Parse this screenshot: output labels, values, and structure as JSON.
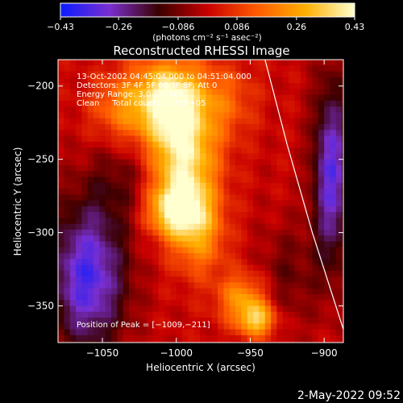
{
  "chart_data": {
    "type": "heatmap",
    "title": "Reconstructed RHESSI Image",
    "xlabel": "Heliocentric X (arcsec)",
    "ylabel": "Heliocentric Y (arcsec)",
    "xlim": [
      -1080,
      -887
    ],
    "ylim": [
      -375,
      -182
    ],
    "x_ticks": [
      -1050,
      -1000,
      -950,
      -900
    ],
    "x_tick_labels": [
      "−1050",
      "−1000",
      "−950",
      "−900"
    ],
    "y_ticks": [
      -200,
      -250,
      -300,
      -350
    ],
    "y_tick_labels": [
      "−200",
      "−250",
      "−300",
      "−350"
    ],
    "colorbar": {
      "min": -0.43,
      "max": 0.43,
      "ticks": [
        -0.43,
        -0.26,
        -0.086,
        0.086,
        0.26,
        0.43
      ],
      "tick_labels": [
        "−0.43",
        "−0.26",
        "−0.086",
        "0.086",
        "0.26",
        "0.43"
      ],
      "units_label": "(photons cm⁻² s⁻¹ asec⁻²)",
      "colors": [
        "#0a1cff",
        "#7a2fd0",
        "#3a0000",
        "#c80000",
        "#ff5a00",
        "#ffb000",
        "#ffffd0"
      ]
    },
    "info_lines": [
      "13-Oct-2002 04:45:04.000 to 04:51:04.000",
      "Detectors: 3F 4F 5F 6F 7F 8F, Att 0",
      "Energy Range: 3.0-6.0 keV",
      "Clean     Total counts: 2.73E+05"
    ],
    "peak_label": "Position of Peak = [−1009,−211]",
    "peak": [
      -1009,
      -211
    ],
    "limb_curve": [
      [
        -940,
        -182
      ],
      [
        -925,
        -240
      ],
      [
        -908,
        -300
      ],
      [
        -887,
        -366
      ]
    ],
    "emission_sources": [
      {
        "x": -1005,
        "y": -210,
        "value": 0.43,
        "sx": 18,
        "sy": 20
      },
      {
        "x": -995,
        "y": -255,
        "value": 0.38,
        "sx": 16,
        "sy": 26
      },
      {
        "x": -1000,
        "y": -285,
        "value": 0.33,
        "sx": 14,
        "sy": 12
      },
      {
        "x": -985,
        "y": -305,
        "value": 0.2,
        "sx": 13,
        "sy": 18
      },
      {
        "x": -955,
        "y": -345,
        "value": 0.24,
        "sx": 12,
        "sy": 12
      },
      {
        "x": -945,
        "y": -360,
        "value": 0.3,
        "sx": 9,
        "sy": 8
      },
      {
        "x": -1040,
        "y": -215,
        "value": 0.15,
        "sx": 14,
        "sy": 16
      },
      {
        "x": -965,
        "y": -210,
        "value": 0.12,
        "sx": 14,
        "sy": 18
      },
      {
        "x": -1060,
        "y": -330,
        "value": -0.35,
        "sx": 18,
        "sy": 35
      },
      {
        "x": -895,
        "y": -260,
        "value": -0.32,
        "sx": 9,
        "sy": 45
      },
      {
        "x": -925,
        "y": -330,
        "value": -0.1,
        "sx": 14,
        "sy": 25
      },
      {
        "x": -1035,
        "y": -265,
        "value": -0.1,
        "sx": 18,
        "sy": 20
      }
    ]
  },
  "footer": {
    "timestamp": "2-May-2022 09:52"
  }
}
